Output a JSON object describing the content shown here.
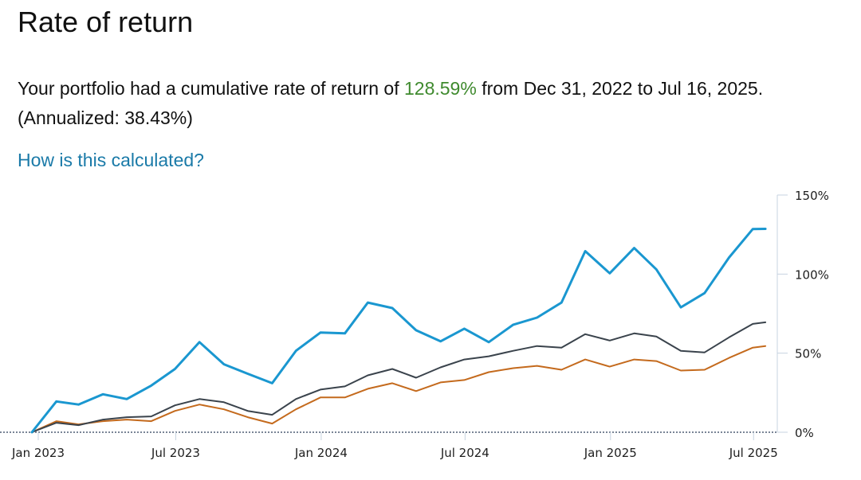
{
  "page": {
    "title": "Rate of return",
    "summary_prefix": "Your portfolio had a cumulative rate of return of ",
    "cumulative_return": "128.59%",
    "summary_suffix": " from Dec 31, 2022 to Jul 16, 2025. (Annualized: 38.43%)",
    "how_link": "How is this calculated?"
  },
  "colors": {
    "portfolio_line": "#1a97d0",
    "benchmark_gray": "#3a434c",
    "benchmark_orange": "#c46a1d",
    "highlight_green": "#3f8a2e",
    "link": "#1a7aa8"
  },
  "chart_data": {
    "type": "line",
    "title": "",
    "xlabel": "",
    "ylabel": "",
    "x_ticks": [
      "Jan 2023",
      "Jul 2023",
      "Jan 2024",
      "Jul 2024",
      "Jan 2025",
      "Jul 2025"
    ],
    "x_range": [
      "2022-12-31",
      "2025-07-31"
    ],
    "y_ticks": [
      "0%",
      "50%",
      "100%",
      "150%"
    ],
    "ylim": [
      0,
      150
    ],
    "y_axis_position": "right",
    "grid": false,
    "legend": "none",
    "x": [
      "2022-12-31",
      "2023-01-31",
      "2023-02-28",
      "2023-03-31",
      "2023-04-30",
      "2023-05-31",
      "2023-06-30",
      "2023-07-31",
      "2023-08-31",
      "2023-09-30",
      "2023-10-31",
      "2023-11-30",
      "2023-12-31",
      "2024-01-31",
      "2024-02-29",
      "2024-03-31",
      "2024-04-30",
      "2024-05-31",
      "2024-06-30",
      "2024-07-31",
      "2024-08-31",
      "2024-09-30",
      "2024-10-31",
      "2024-11-30",
      "2024-12-31",
      "2025-01-31",
      "2025-02-28",
      "2025-03-31",
      "2025-04-30",
      "2025-05-31",
      "2025-06-30",
      "2025-07-16"
    ],
    "series": [
      {
        "values": [
          0,
          19.5,
          17.5,
          24,
          21,
          29.5,
          40,
          57,
          43,
          37,
          31,
          51.5,
          63,
          62.5,
          82,
          78.5,
          64.5,
          57.5,
          65.5,
          57,
          68,
          72.5,
          82,
          114.5,
          100.5,
          116.5,
          103,
          79,
          88,
          110.5,
          128.5,
          128.59
        ]
      },
      {
        "values": [
          0,
          6,
          4.5,
          8,
          9.5,
          10,
          17,
          21,
          19,
          13.5,
          11,
          21,
          27,
          29,
          36,
          40,
          34.5,
          41,
          46,
          48,
          51.5,
          54.5,
          53.5,
          62,
          58,
          62.5,
          60.5,
          51.5,
          50.5,
          60,
          68.5,
          69.5
        ]
      },
      {
        "values": [
          0,
          7,
          5,
          7,
          8,
          7,
          13.5,
          17.5,
          14.5,
          9.5,
          5.5,
          14.5,
          22,
          22,
          27.5,
          31,
          26,
          31.5,
          33,
          38,
          40.5,
          42,
          39.5,
          46,
          41.5,
          46,
          45,
          39,
          39.5,
          47,
          53.5,
          54.5
        ]
      }
    ]
  }
}
